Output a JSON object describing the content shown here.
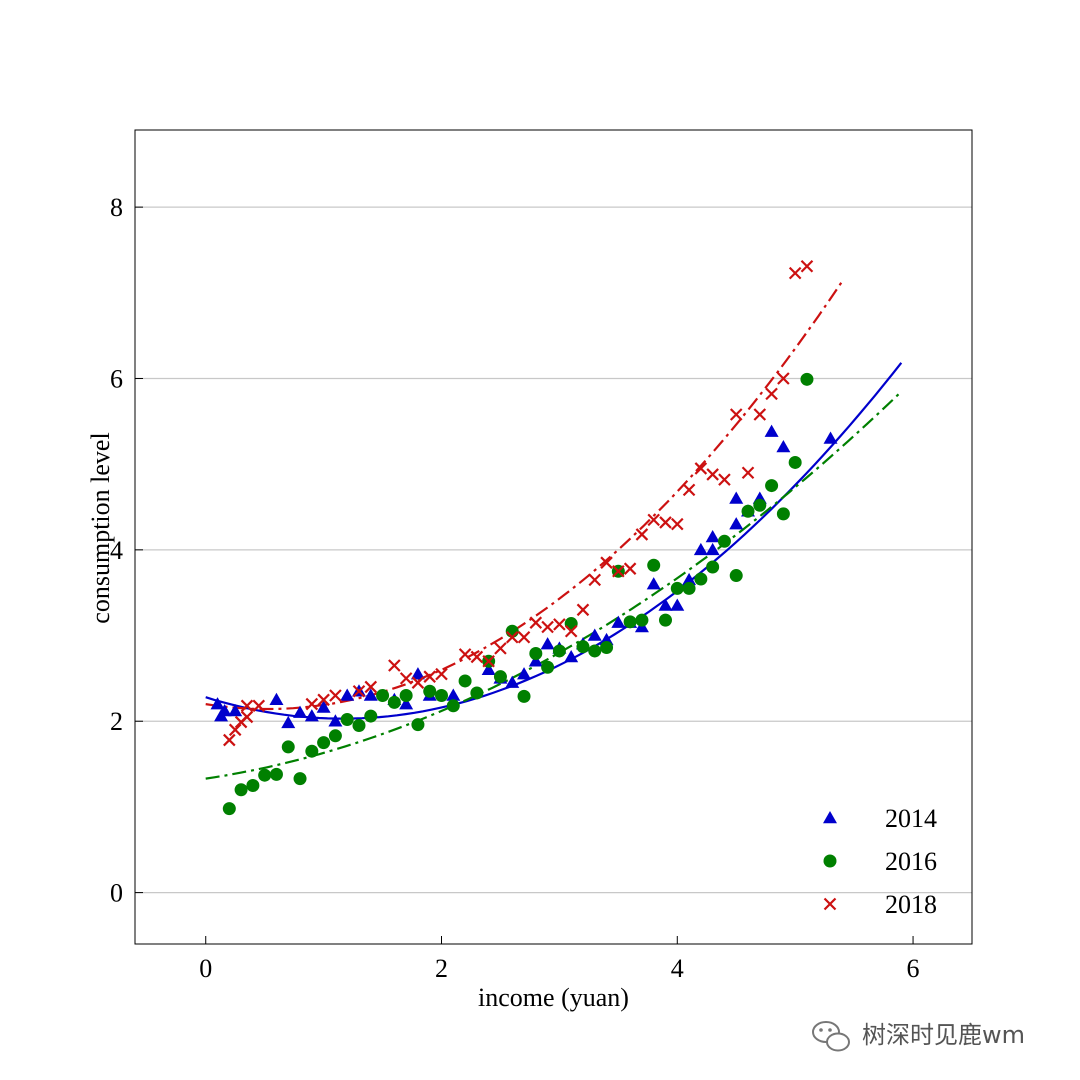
{
  "chart_data": {
    "type": "scatter",
    "xlabel": "income (yuan)",
    "ylabel": "consumption level",
    "xlim": [
      -0.6,
      6.5
    ],
    "ylim": [
      -0.6,
      8.9
    ],
    "xticks": [
      "0",
      "2",
      "4",
      "6"
    ],
    "xtick_values": [
      0,
      2,
      4,
      6
    ],
    "yticks": [
      "0",
      "2",
      "4",
      "6",
      "8"
    ],
    "ytick_values": [
      0,
      2,
      4,
      6,
      8
    ],
    "grid": "horizontal",
    "legend_position": "bottom-right",
    "series": [
      {
        "name": "2014",
        "marker": "triangle",
        "color": "#0000cc",
        "points": [
          [
            0.1,
            2.2
          ],
          [
            0.13,
            2.06
          ],
          [
            0.16,
            2.12
          ],
          [
            0.25,
            2.12
          ],
          [
            0.6,
            2.25
          ],
          [
            0.7,
            1.98
          ],
          [
            0.8,
            2.1
          ],
          [
            0.9,
            2.06
          ],
          [
            1.0,
            2.16
          ],
          [
            1.1,
            2.0
          ],
          [
            1.2,
            2.3
          ],
          [
            1.3,
            2.35
          ],
          [
            1.4,
            2.3
          ],
          [
            1.6,
            2.25
          ],
          [
            1.7,
            2.2
          ],
          [
            1.8,
            2.55
          ],
          [
            1.9,
            2.3
          ],
          [
            2.1,
            2.3
          ],
          [
            2.4,
            2.6
          ],
          [
            2.5,
            2.5
          ],
          [
            2.6,
            2.45
          ],
          [
            2.7,
            2.55
          ],
          [
            2.8,
            2.7
          ],
          [
            2.9,
            2.9
          ],
          [
            3.0,
            2.85
          ],
          [
            3.1,
            2.75
          ],
          [
            3.2,
            2.9
          ],
          [
            3.3,
            3.0
          ],
          [
            3.4,
            2.95
          ],
          [
            3.5,
            3.15
          ],
          [
            3.6,
            3.15
          ],
          [
            3.7,
            3.1
          ],
          [
            3.8,
            3.6
          ],
          [
            3.9,
            3.35
          ],
          [
            4.0,
            3.35
          ],
          [
            4.1,
            3.65
          ],
          [
            4.2,
            4.0
          ],
          [
            4.3,
            4.15
          ],
          [
            4.3,
            4.0
          ],
          [
            4.5,
            4.6
          ],
          [
            4.5,
            4.3
          ],
          [
            4.6,
            4.45
          ],
          [
            4.7,
            4.6
          ],
          [
            4.8,
            5.38
          ],
          [
            4.9,
            5.2
          ],
          [
            5.3,
            5.3
          ]
        ]
      },
      {
        "name": "2016",
        "marker": "circle",
        "color": "#008000",
        "points": [
          [
            0.2,
            0.98
          ],
          [
            0.3,
            1.2
          ],
          [
            0.4,
            1.25
          ],
          [
            0.5,
            1.37
          ],
          [
            0.6,
            1.38
          ],
          [
            0.7,
            1.7
          ],
          [
            0.8,
            1.33
          ],
          [
            0.9,
            1.65
          ],
          [
            1.0,
            1.75
          ],
          [
            1.1,
            1.83
          ],
          [
            1.2,
            2.02
          ],
          [
            1.3,
            1.95
          ],
          [
            1.4,
            2.06
          ],
          [
            1.5,
            2.3
          ],
          [
            1.6,
            2.22
          ],
          [
            1.7,
            2.3
          ],
          [
            1.8,
            1.96
          ],
          [
            1.9,
            2.35
          ],
          [
            2.0,
            2.3
          ],
          [
            2.1,
            2.18
          ],
          [
            2.2,
            2.47
          ],
          [
            2.3,
            2.33
          ],
          [
            2.4,
            2.7
          ],
          [
            2.5,
            2.52
          ],
          [
            2.6,
            3.05
          ],
          [
            2.7,
            2.29
          ],
          [
            2.8,
            2.79
          ],
          [
            2.9,
            2.63
          ],
          [
            3.0,
            2.82
          ],
          [
            3.1,
            3.14
          ],
          [
            3.2,
            2.87
          ],
          [
            3.3,
            2.82
          ],
          [
            3.4,
            2.86
          ],
          [
            3.5,
            3.75
          ],
          [
            3.6,
            3.16
          ],
          [
            3.7,
            3.18
          ],
          [
            3.8,
            3.82
          ],
          [
            3.9,
            3.18
          ],
          [
            4.0,
            3.55
          ],
          [
            4.1,
            3.55
          ],
          [
            4.2,
            3.66
          ],
          [
            4.3,
            3.8
          ],
          [
            4.4,
            4.1
          ],
          [
            4.5,
            3.7
          ],
          [
            4.6,
            4.45
          ],
          [
            4.7,
            4.52
          ],
          [
            4.8,
            4.75
          ],
          [
            4.9,
            4.42
          ],
          [
            5.0,
            5.02
          ],
          [
            5.1,
            5.99
          ]
        ]
      },
      {
        "name": "2018",
        "marker": "x",
        "color": "#cc1111",
        "points": [
          [
            0.2,
            1.78
          ],
          [
            0.25,
            1.9
          ],
          [
            0.3,
            1.99
          ],
          [
            0.35,
            2.05
          ],
          [
            0.35,
            2.18
          ],
          [
            0.45,
            2.18
          ],
          [
            0.9,
            2.2
          ],
          [
            1.0,
            2.25
          ],
          [
            1.1,
            2.3
          ],
          [
            1.3,
            2.35
          ],
          [
            1.4,
            2.4
          ],
          [
            1.6,
            2.65
          ],
          [
            1.7,
            2.5
          ],
          [
            1.8,
            2.45
          ],
          [
            1.9,
            2.52
          ],
          [
            2.0,
            2.55
          ],
          [
            2.2,
            2.78
          ],
          [
            2.3,
            2.75
          ],
          [
            2.4,
            2.7
          ],
          [
            2.5,
            2.85
          ],
          [
            2.6,
            2.98
          ],
          [
            2.7,
            2.98
          ],
          [
            2.8,
            3.15
          ],
          [
            2.9,
            3.1
          ],
          [
            3.0,
            3.13
          ],
          [
            3.1,
            3.05
          ],
          [
            3.2,
            3.3
          ],
          [
            3.3,
            3.65
          ],
          [
            3.4,
            3.85
          ],
          [
            3.5,
            3.75
          ],
          [
            3.6,
            3.78
          ],
          [
            3.7,
            4.18
          ],
          [
            3.8,
            4.35
          ],
          [
            3.9,
            4.32
          ],
          [
            4.0,
            4.3
          ],
          [
            4.1,
            4.7
          ],
          [
            4.2,
            4.95
          ],
          [
            4.3,
            4.88
          ],
          [
            4.4,
            4.82
          ],
          [
            4.5,
            5.58
          ],
          [
            4.6,
            4.9
          ],
          [
            4.7,
            5.58
          ],
          [
            4.8,
            5.82
          ],
          [
            4.9,
            6.0
          ],
          [
            5.0,
            7.23
          ],
          [
            5.1,
            7.31
          ]
        ]
      }
    ],
    "fits": [
      {
        "series": "2014",
        "style": "solid",
        "color": "#0000cc",
        "coefficients": [
          2.28,
          -0.43,
          0.185
        ],
        "x_range": [
          0,
          5.9
        ]
      },
      {
        "series": "2016",
        "style": "dashdot",
        "color": "#008000",
        "coefficients": [
          1.33,
          0.205,
          0.095
        ],
        "x_range": [
          0,
          5.9
        ]
      },
      {
        "series": "2018",
        "style": "dashdot",
        "color": "#cc1111",
        "coefficients": [
          2.2,
          -0.22,
          0.21
        ],
        "x_range": [
          0,
          5.4
        ]
      }
    ]
  },
  "watermark": {
    "text": "树深时见鹿wm",
    "icon": "wechat-icon"
  }
}
